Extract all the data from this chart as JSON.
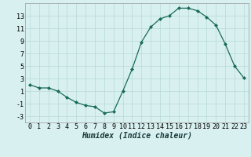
{
  "x": [
    0,
    1,
    2,
    3,
    4,
    5,
    6,
    7,
    8,
    9,
    10,
    11,
    12,
    13,
    14,
    15,
    16,
    17,
    18,
    19,
    20,
    21,
    22,
    23
  ],
  "y": [
    2,
    1.5,
    1.5,
    1,
    0,
    -0.8,
    -1.3,
    -1.5,
    -2.5,
    -2.3,
    1,
    4.5,
    8.8,
    11.2,
    12.5,
    13.0,
    14.2,
    14.2,
    13.8,
    12.8,
    11.5,
    8.5,
    5.0,
    3.1
  ],
  "xlim": [
    -0.5,
    23.5
  ],
  "ylim": [
    -4,
    15
  ],
  "yticks": [
    -3,
    -1,
    1,
    3,
    5,
    7,
    9,
    11,
    13
  ],
  "xticks": [
    0,
    1,
    2,
    3,
    4,
    5,
    6,
    7,
    8,
    9,
    10,
    11,
    12,
    13,
    14,
    15,
    16,
    17,
    18,
    19,
    20,
    21,
    22,
    23
  ],
  "xlabel": "Humidex (Indice chaleur)",
  "line_color": "#1a6b5a",
  "marker": "D",
  "marker_size": 2.0,
  "bg_color": "#d8f0f0",
  "grid_color": "#b8d8d8",
  "tick_fontsize": 6.0,
  "xlabel_fontsize": 7.0
}
